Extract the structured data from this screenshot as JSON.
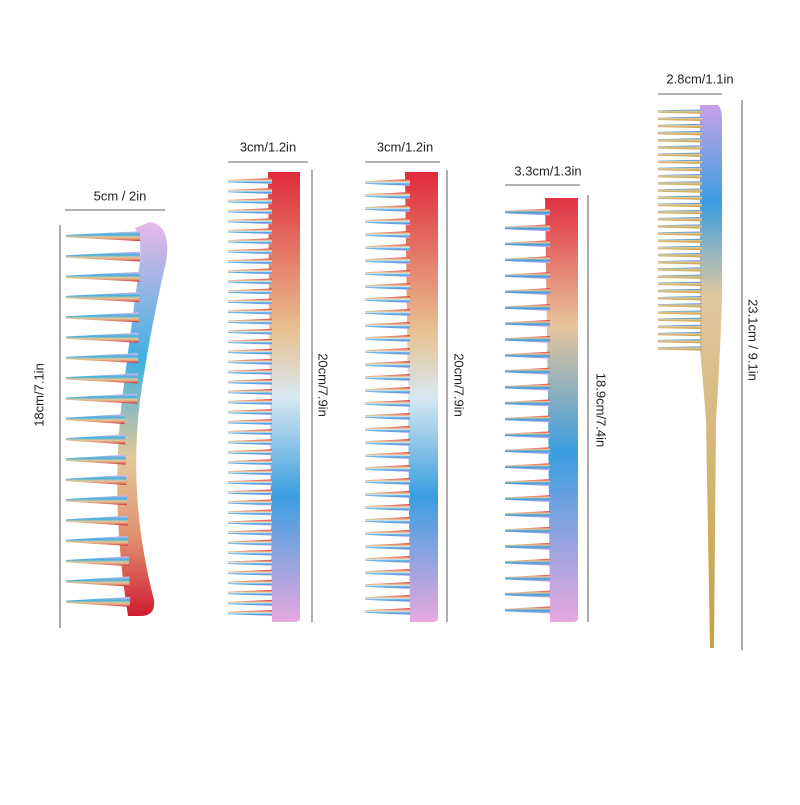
{
  "combs": [
    {
      "width": "5cm / 2in",
      "length": "18cm/7.1in"
    },
    {
      "width": "3cm/1.2in",
      "length": "20cm/7.9in"
    },
    {
      "width": "3cm/1.2in",
      "length": "20cm/7.9in"
    },
    {
      "width": "3.3cm/1.3in",
      "length": "18.9cm/7.4in"
    },
    {
      "width": "2.8cm/1.1in",
      "length": "23.1cm / 9.1in"
    }
  ]
}
